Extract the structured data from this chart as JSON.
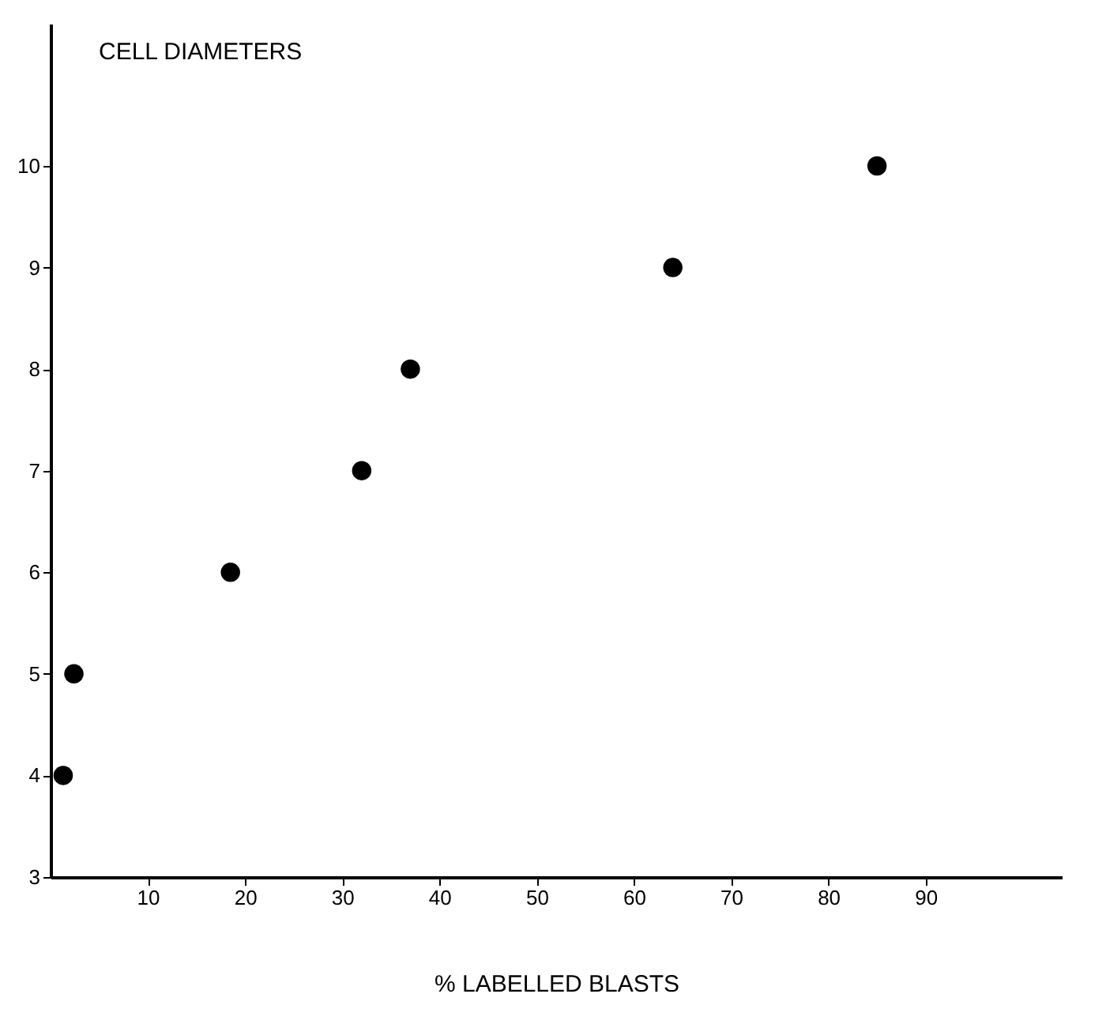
{
  "chart_data": {
    "type": "scatter",
    "xlabel": "% LABELLED BLASTS",
    "ylabel": "CELL DIAMETERS",
    "x": [
      1.3,
      2.4,
      18.5,
      32,
      37,
      64,
      85
    ],
    "series": [
      {
        "color": "#000000",
        "values": [
          4,
          5,
          6,
          7,
          8,
          9,
          10
        ]
      }
    ],
    "xlim": [
      0,
      104
    ],
    "xticks": [
      10,
      20,
      30,
      40,
      50,
      60,
      70,
      80,
      90
    ],
    "ylim": [
      3,
      11.4
    ],
    "yticks": [
      3,
      4,
      5,
      6,
      7,
      8,
      9,
      10
    ],
    "grid": false,
    "marker": "circle"
  }
}
